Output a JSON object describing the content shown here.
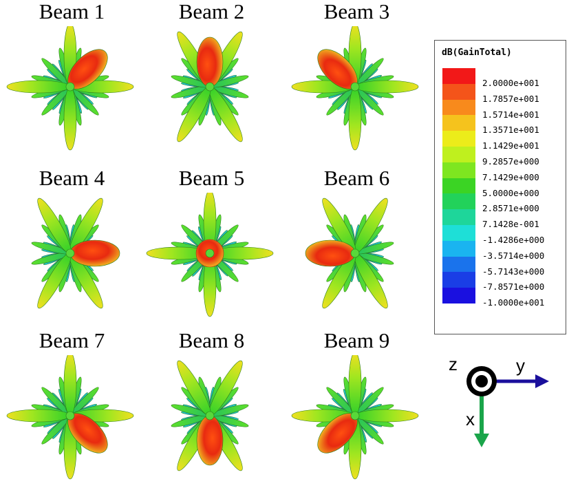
{
  "beams": [
    {
      "title": "Beam  1",
      "dir": "right-up"
    },
    {
      "title": "Beam  2",
      "dir": "center-up"
    },
    {
      "title": "Beam  3",
      "dir": "left-up"
    },
    {
      "title": "Beam  4",
      "dir": "right"
    },
    {
      "title": "Beam  5",
      "dir": "center"
    },
    {
      "title": "Beam  6",
      "dir": "left"
    },
    {
      "title": "Beam  7",
      "dir": "right-down"
    },
    {
      "title": "Beam  8",
      "dir": "center-down"
    },
    {
      "title": "Beam  9",
      "dir": "left-down"
    }
  ],
  "legend": {
    "title": "dB(GainTotal)",
    "labels": [
      "2.0000e+001",
      "1.7857e+001",
      "1.5714e+001",
      "1.3571e+001",
      "1.1429e+001",
      "9.2857e+000",
      "7.1429e+000",
      "5.0000e+000",
      "2.8571e+000",
      "7.1428e-001",
      "-1.4286e+000",
      "-3.5714e+000",
      "-5.7143e+000",
      "-7.8571e+000",
      "-1.0000e+001"
    ],
    "colors": [
      "#f21818",
      "#f4541a",
      "#f88a1c",
      "#f5c31d",
      "#ecec1a",
      "#bff01e",
      "#7ee620",
      "#3bd424",
      "#22d25a",
      "#1ed69a",
      "#1edfd7",
      "#1ab4f0",
      "#1a73ec",
      "#1a3ee6",
      "#1a10e0"
    ]
  },
  "axes": {
    "z_label": "z",
    "y_label": "y",
    "x_label": "x",
    "y_color": "#1a0f9c",
    "x_color": "#1aa54a"
  }
}
